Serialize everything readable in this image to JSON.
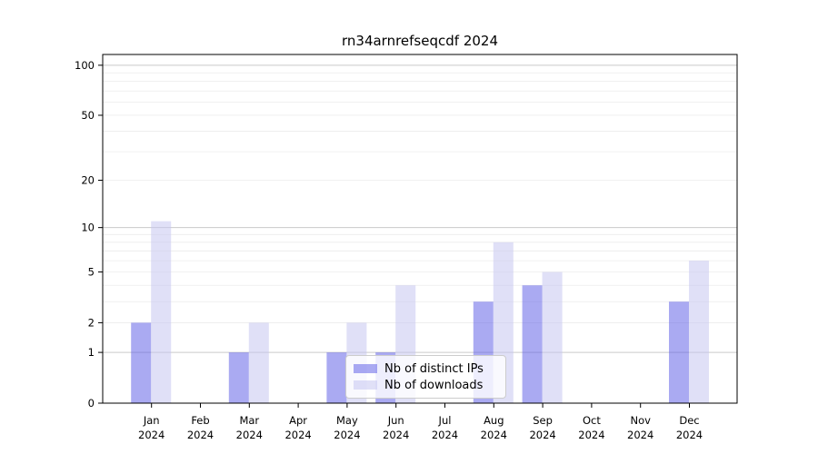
{
  "chart_data": {
    "type": "bar",
    "title": "rn34arnrefseqcdf 2024",
    "categories": [
      "Jan",
      "Feb",
      "Mar",
      "Apr",
      "May",
      "Jun",
      "Jul",
      "Aug",
      "Sep",
      "Oct",
      "Nov",
      "Dec"
    ],
    "category_year": "2024",
    "series": [
      {
        "name": "Nb of distinct IPs",
        "color": "rgba(100,100,232,0.55)",
        "values": [
          2,
          0,
          1,
          0,
          1,
          1,
          0,
          3,
          4,
          0,
          0,
          3
        ]
      },
      {
        "name": "Nb of downloads",
        "color": "rgba(198,198,240,0.55)",
        "values": [
          11,
          0,
          2,
          0,
          2,
          4,
          0,
          8,
          5,
          0,
          0,
          6
        ]
      }
    ],
    "xlabel": "",
    "ylabel": "",
    "yscale": "log1p",
    "ylim": [
      0,
      116
    ],
    "yticks": [
      0,
      1,
      2,
      5,
      10,
      20,
      50,
      100
    ],
    "major_gridlines": [
      1,
      10,
      100
    ],
    "minor_gridlines": [
      2,
      3,
      4,
      5,
      6,
      7,
      8,
      9,
      20,
      30,
      40,
      50,
      60,
      70,
      80,
      90
    ],
    "grid": true,
    "legend_position": "bottom-center",
    "colors": {
      "axis": "#000000",
      "major_grid": "#c9c9c9",
      "minor_grid": "#ececec",
      "tick_label": "#000000"
    }
  }
}
